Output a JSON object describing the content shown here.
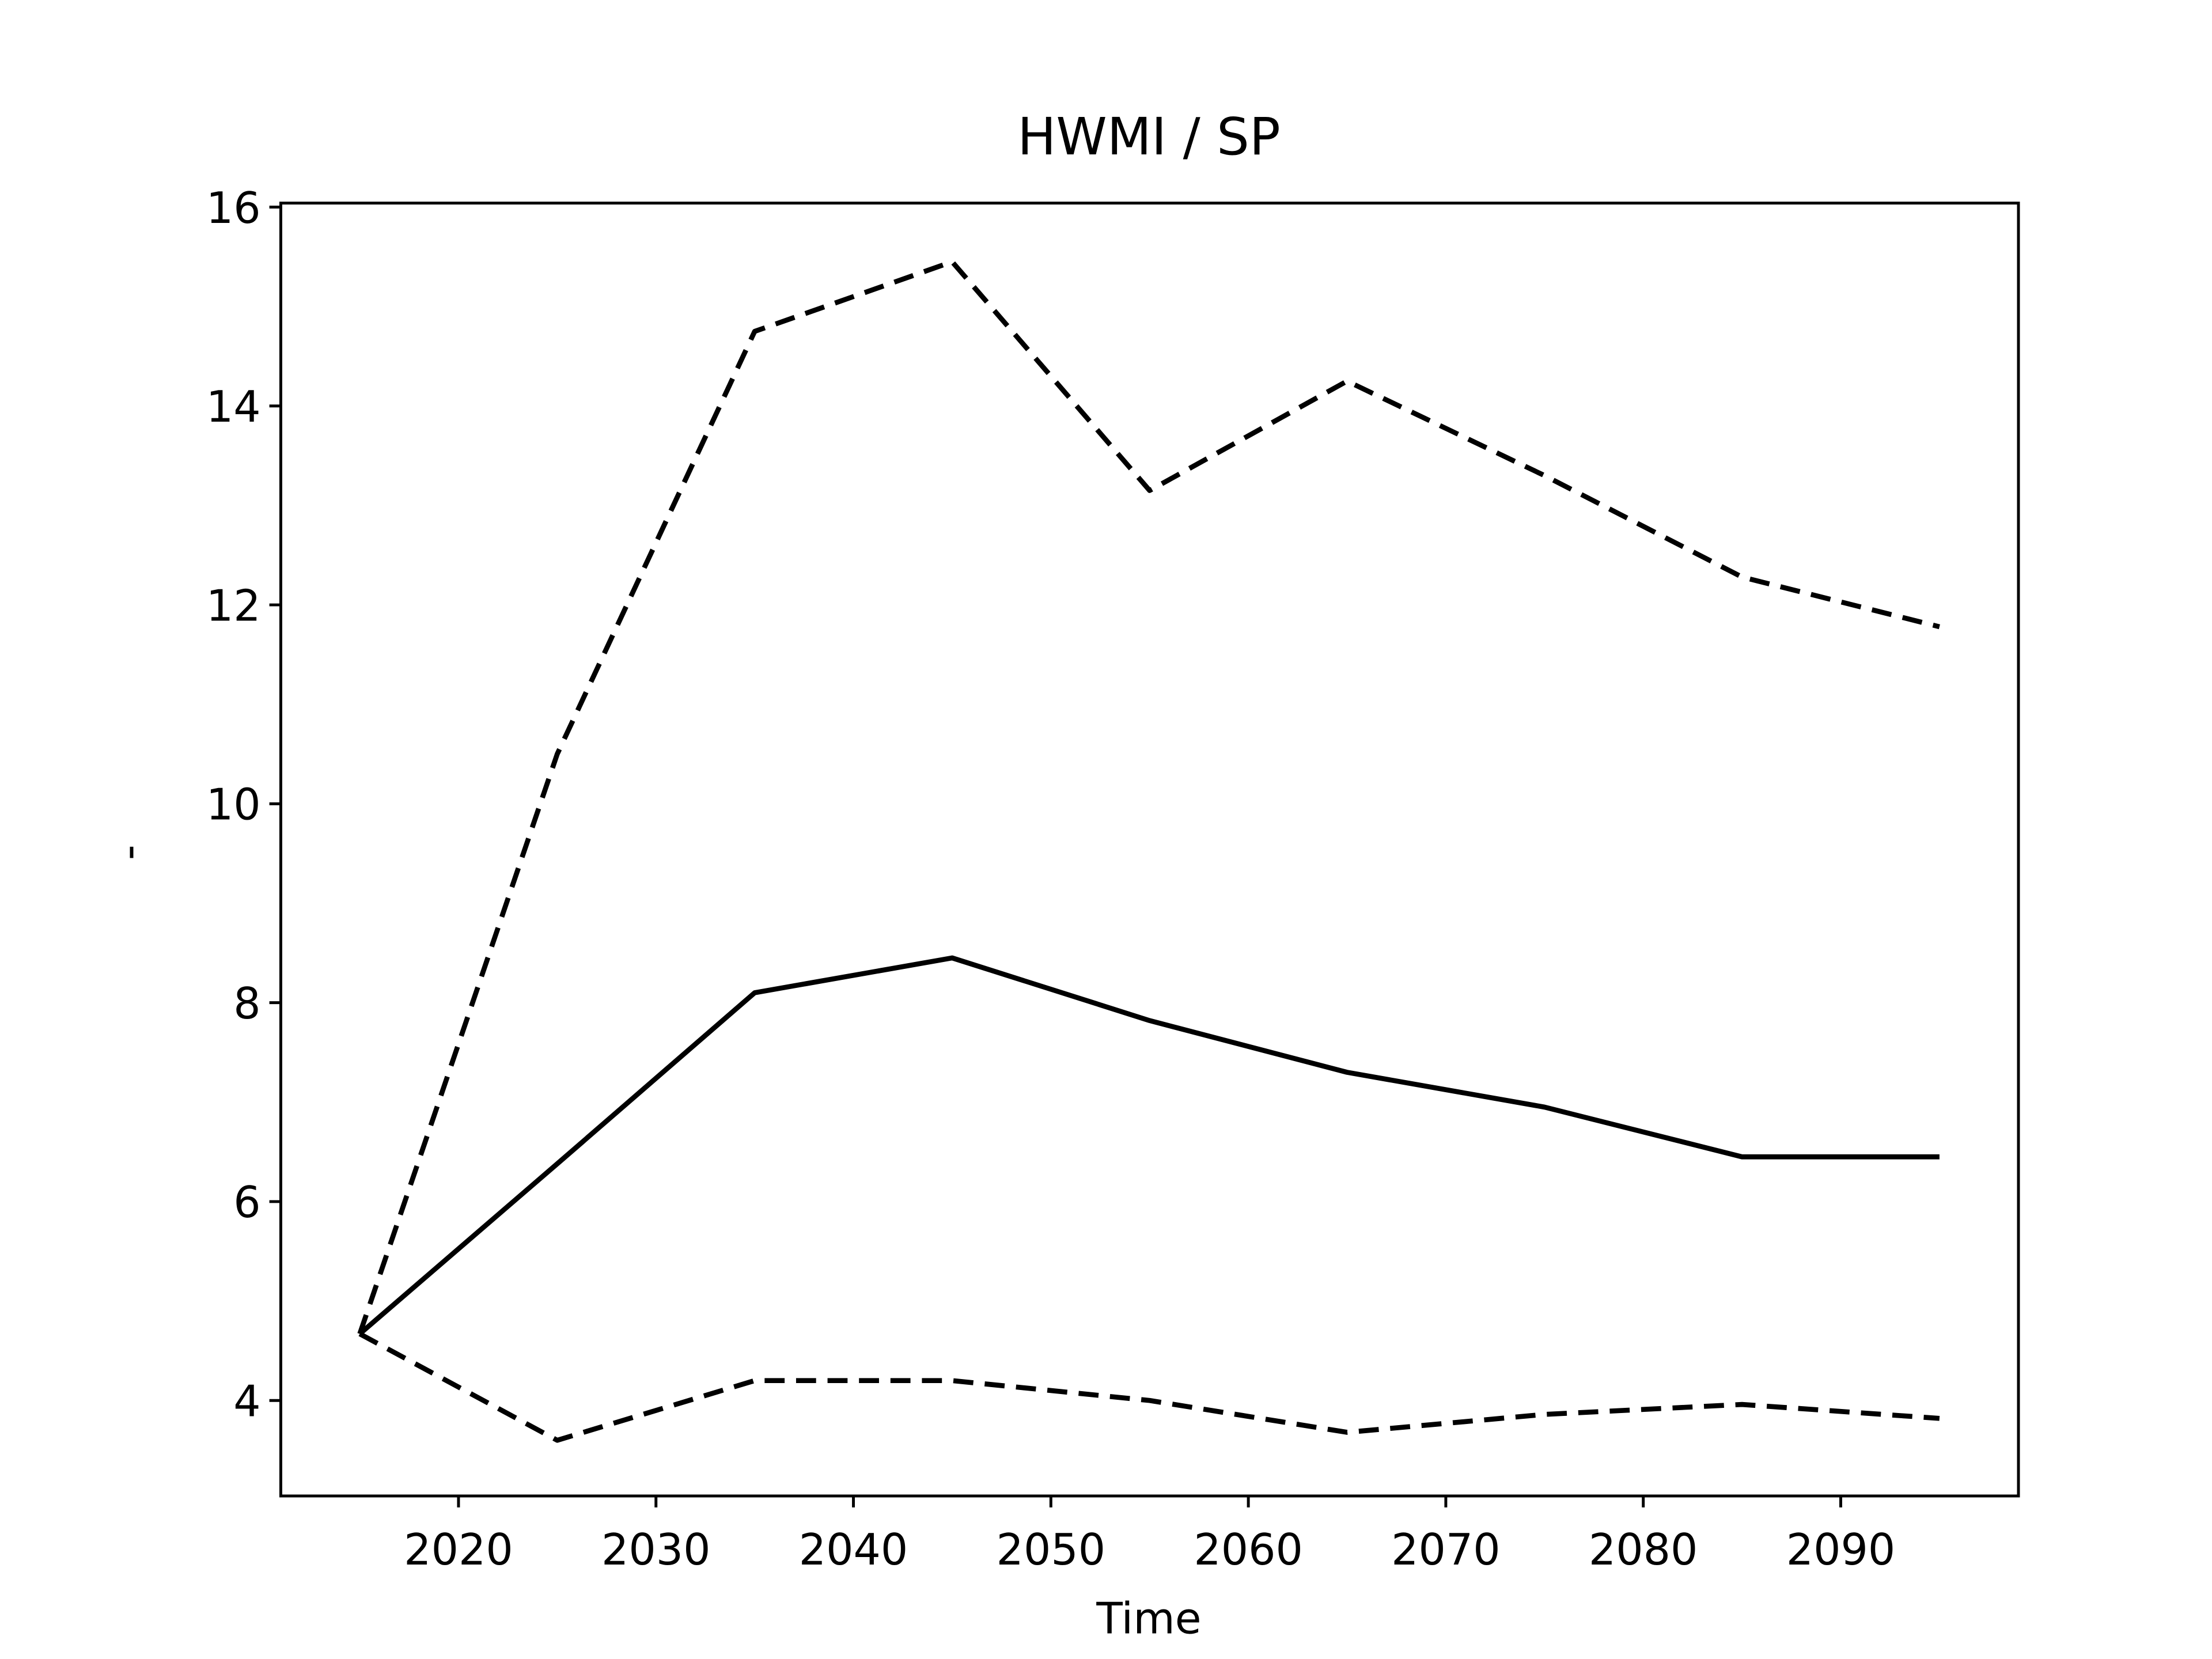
{
  "chart_data": {
    "type": "line",
    "title": "HWMI / SP",
    "x_label": "Time",
    "y_label": "-",
    "x": [
      2015,
      2025,
      2035,
      2045,
      2055,
      2065,
      2075,
      2085,
      2095
    ],
    "series": [
      {
        "color": "#000000",
        "dashed": false,
        "values": [
          4.67,
          6.38,
          8.1,
          8.45,
          7.82,
          7.3,
          6.95,
          6.45,
          6.45
        ]
      },
      {
        "color": "#000000",
        "dashed": true,
        "values": [
          4.67,
          10.5,
          14.75,
          15.45,
          13.15,
          14.25,
          13.3,
          12.28,
          11.78
        ]
      },
      {
        "color": "#000000",
        "dashed": true,
        "values": [
          4.67,
          3.6,
          4.2,
          4.2,
          4.0,
          3.68,
          3.86,
          3.96,
          3.82
        ]
      }
    ],
    "xlim": [
      2011,
      2099
    ],
    "ylim": [
      3.04,
      16.04
    ],
    "xticks": [
      2020,
      2030,
      2040,
      2050,
      2060,
      2070,
      2080,
      2090
    ],
    "yticks": [
      4,
      6,
      8,
      10,
      12,
      14,
      16
    ]
  }
}
